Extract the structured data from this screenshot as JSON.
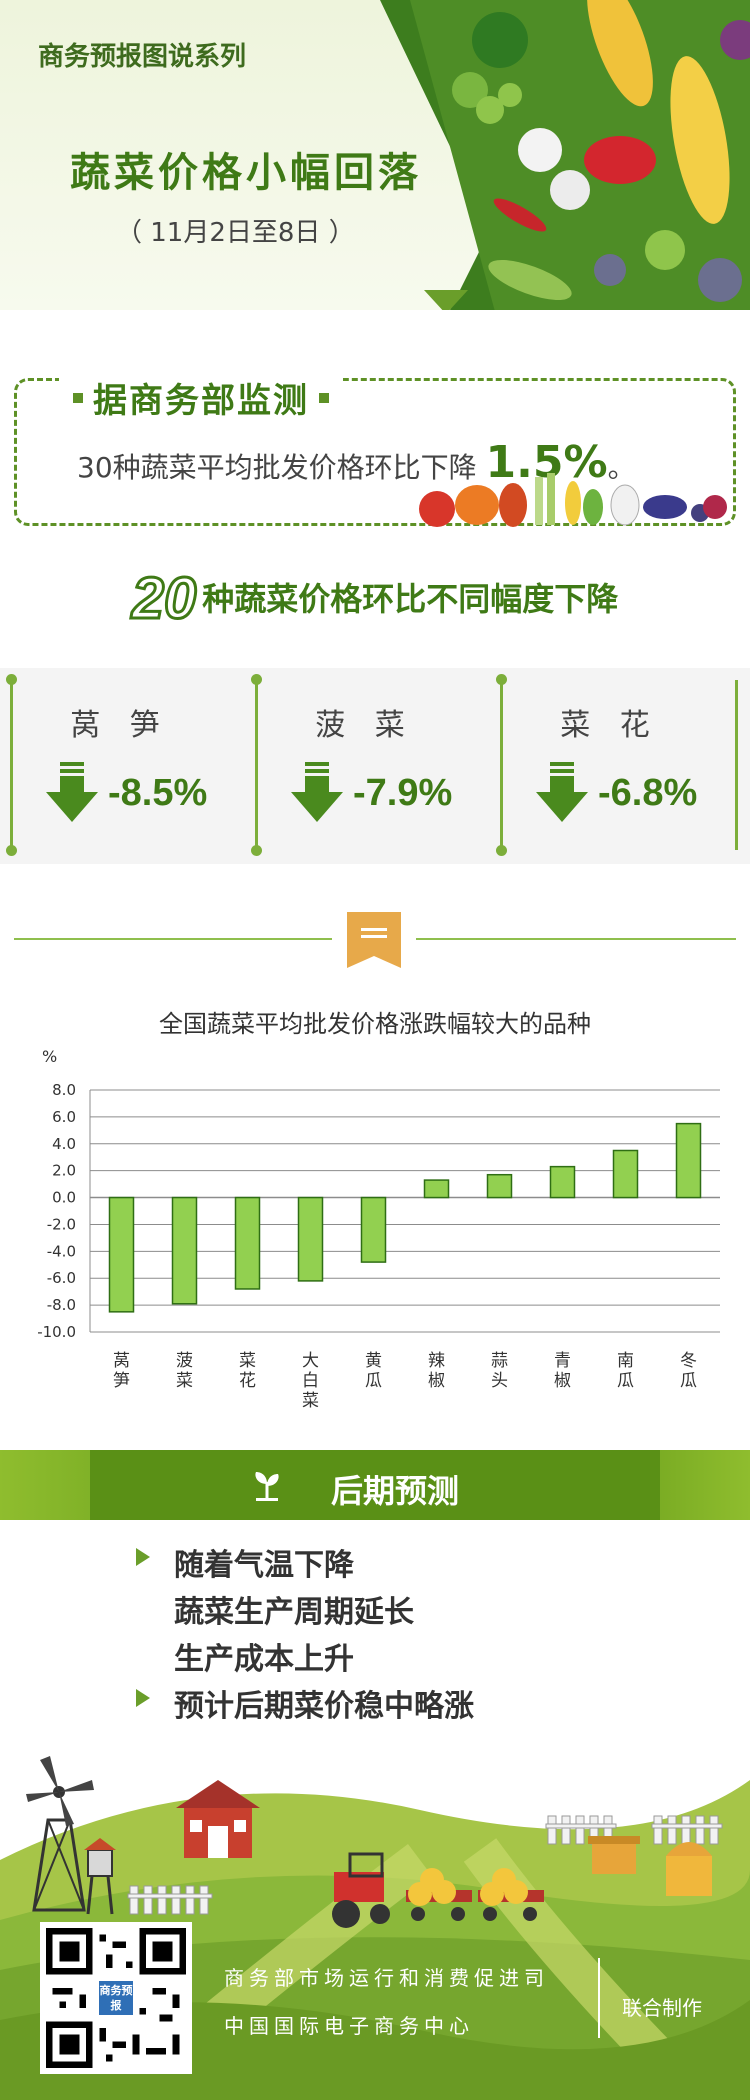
{
  "header": {
    "series": "商务预报图说系列",
    "title": "蔬菜价格小幅回落",
    "date": "（  11月2日至8日  ）"
  },
  "monitor": {
    "label": "据商务部监测",
    "sentence": "30种蔬菜平均批发价格环比下降",
    "pct": "1.5%",
    "suffix": "。"
  },
  "twenty": {
    "num": "20",
    "text": "种蔬菜价格环比不同幅度下降"
  },
  "cards": [
    {
      "name": "莴 笋",
      "value": "-8.5%"
    },
    {
      "name": "菠 菜",
      "value": "-7.9%"
    },
    {
      "name": "菜 花",
      "value": "-6.8%"
    }
  ],
  "chart_data": {
    "type": "bar",
    "title": "全国蔬菜平均批发价格涨跌幅较大的品种",
    "ylabel": "%",
    "ylim": [
      -10.0,
      8.0
    ],
    "yticks": [
      "8.0",
      "6.0",
      "4.0",
      "2.0",
      "0.0",
      "-2.0",
      "-4.0",
      "-6.0",
      "-8.0",
      "-10.0"
    ],
    "categories": [
      "莴笋",
      "菠菜",
      "菜花",
      "大白菜",
      "黄瓜",
      "辣椒",
      "蒜头",
      "青椒",
      "南瓜",
      "冬瓜"
    ],
    "values": [
      -8.5,
      -7.9,
      -6.8,
      -6.2,
      -4.8,
      1.3,
      1.7,
      2.3,
      3.5,
      5.5
    ],
    "bar_color": "#92d050",
    "grid": true
  },
  "forecast": {
    "title": "后期预测",
    "items": [
      "随着气温下降",
      "蔬菜生产周期延长",
      "生产成本上升",
      "预计后期菜价稳中略涨"
    ]
  },
  "footer": {
    "org1": "商务部市场运行和消费促进司",
    "org2": "中国国际电子商务中心",
    "joint": "联合制作",
    "qr_logo": "商务预报"
  },
  "colors": {
    "primary_green": "#3f7a16",
    "accent_green": "#6a9e2a",
    "bar_green": "#92d050"
  }
}
